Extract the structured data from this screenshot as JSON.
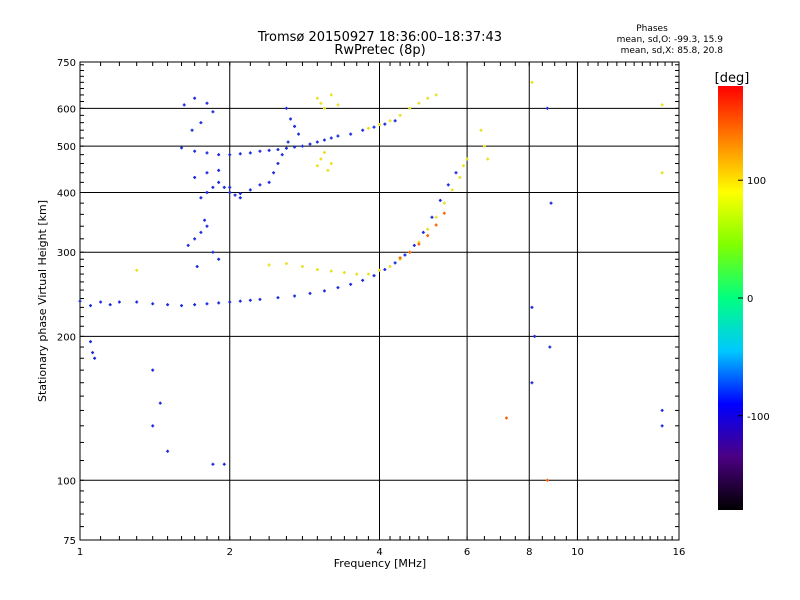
{
  "chart_data": {
    "type": "scatter",
    "title": "Tromsø 20150927 18:36:00–18:37:43",
    "subtitle": "RwPretec (8p)",
    "xlabel": "Frequency [MHz]",
    "ylabel": "Stationary phase Virtual Height [km]",
    "xscale": "log",
    "yscale": "log",
    "xlim": [
      1,
      16
    ],
    "ylim": [
      75,
      750
    ],
    "x_ticks": [
      1,
      2,
      4,
      6,
      8,
      10,
      16
    ],
    "y_ticks": [
      75,
      100,
      200,
      300,
      400,
      500,
      600,
      750
    ],
    "x_grid": [
      2,
      4,
      6,
      8,
      10
    ],
    "y_grid": [
      100,
      200,
      300,
      400,
      500,
      600
    ],
    "grid": true,
    "stats_header": "Phases",
    "stats_line1": "mean, sd,O: -99.3, 15.9",
    "stats_line2": "mean, sd,X:  85.8, 20.8",
    "colorbar": {
      "label": "[deg]",
      "range": [
        -180,
        180
      ],
      "ticks": [
        -100,
        0,
        100
      ],
      "colors": [
        "#000000",
        "#4b0082",
        "#0000ff",
        "#00c8ff",
        "#00ff80",
        "#80ff00",
        "#ffff00",
        "#ff8000",
        "#ff0000"
      ]
    },
    "series": [
      {
        "name": "O",
        "color": "#1c2cdc",
        "points": [
          [
            1.0,
            237
          ],
          [
            1.05,
            232
          ],
          [
            1.1,
            236
          ],
          [
            1.15,
            233
          ],
          [
            1.2,
            236
          ],
          [
            1.3,
            236
          ],
          [
            1.4,
            234
          ],
          [
            1.5,
            233
          ],
          [
            1.6,
            232
          ],
          [
            1.7,
            233
          ],
          [
            1.8,
            234
          ],
          [
            1.9,
            235
          ],
          [
            2.0,
            236
          ],
          [
            2.1,
            237
          ],
          [
            2.2,
            238
          ],
          [
            2.3,
            239
          ],
          [
            2.5,
            241
          ],
          [
            2.7,
            243
          ],
          [
            2.9,
            246
          ],
          [
            3.1,
            249
          ],
          [
            3.3,
            253
          ],
          [
            3.5,
            257
          ],
          [
            3.7,
            262
          ],
          [
            3.9,
            268
          ],
          [
            4.1,
            276
          ],
          [
            4.3,
            285
          ],
          [
            4.5,
            296
          ],
          [
            4.7,
            310
          ],
          [
            4.9,
            330
          ],
          [
            5.1,
            355
          ],
          [
            5.3,
            385
          ],
          [
            5.5,
            415
          ],
          [
            5.7,
            440
          ],
          [
            1.6,
            496
          ],
          [
            1.7,
            488
          ],
          [
            1.8,
            484
          ],
          [
            1.9,
            480
          ],
          [
            2.0,
            480
          ],
          [
            2.1,
            482
          ],
          [
            2.2,
            484
          ],
          [
            2.3,
            488
          ],
          [
            2.4,
            490
          ],
          [
            2.5,
            492
          ],
          [
            2.6,
            495
          ],
          [
            2.7,
            498
          ],
          [
            2.8,
            500
          ],
          [
            2.9,
            505
          ],
          [
            3.0,
            510
          ],
          [
            3.1,
            515
          ],
          [
            3.2,
            520
          ],
          [
            3.3,
            525
          ],
          [
            3.5,
            530
          ],
          [
            3.7,
            540
          ],
          [
            3.9,
            548
          ],
          [
            4.1,
            556
          ],
          [
            4.3,
            565
          ],
          [
            1.75,
            390
          ],
          [
            1.8,
            400
          ],
          [
            1.85,
            410
          ],
          [
            1.9,
            420
          ],
          [
            1.95,
            410
          ],
          [
            2.0,
            400
          ],
          [
            2.05,
            395
          ],
          [
            2.1,
            398
          ],
          [
            2.2,
            405
          ],
          [
            2.3,
            415
          ],
          [
            1.7,
            430
          ],
          [
            1.8,
            440
          ],
          [
            1.9,
            445
          ],
          [
            2.0,
            410
          ],
          [
            2.1,
            390
          ],
          [
            1.65,
            310
          ],
          [
            1.7,
            320
          ],
          [
            1.75,
            330
          ],
          [
            1.8,
            340
          ],
          [
            1.85,
            300
          ],
          [
            1.9,
            290
          ],
          [
            1.72,
            280
          ],
          [
            1.78,
            350
          ],
          [
            1.62,
            610
          ],
          [
            1.7,
            630
          ],
          [
            1.8,
            615
          ],
          [
            1.85,
            590
          ],
          [
            1.75,
            560
          ],
          [
            1.68,
            540
          ],
          [
            2.6,
            600
          ],
          [
            2.65,
            570
          ],
          [
            2.7,
            550
          ],
          [
            2.75,
            530
          ],
          [
            2.62,
            510
          ],
          [
            2.55,
            480
          ],
          [
            2.5,
            460
          ],
          [
            2.45,
            440
          ],
          [
            2.4,
            420
          ],
          [
            1.05,
            195
          ],
          [
            1.06,
            185
          ],
          [
            1.07,
            180
          ],
          [
            1.4,
            170
          ],
          [
            1.5,
            115
          ],
          [
            1.85,
            108
          ],
          [
            1.95,
            108
          ],
          [
            1.4,
            130
          ],
          [
            1.45,
            145
          ],
          [
            8.1,
            230
          ],
          [
            8.2,
            200
          ],
          [
            8.7,
            600
          ],
          [
            8.8,
            190
          ],
          [
            8.85,
            380
          ],
          [
            8.1,
            160
          ],
          [
            14.8,
            140
          ],
          [
            14.8,
            130
          ]
        ]
      },
      {
        "name": "X",
        "color": "#e8e020",
        "points": [
          [
            2.4,
            282
          ],
          [
            2.6,
            284
          ],
          [
            2.8,
            280
          ],
          [
            3.0,
            276
          ],
          [
            3.2,
            274
          ],
          [
            3.4,
            272
          ],
          [
            3.6,
            270
          ],
          [
            3.8,
            270
          ],
          [
            4.0,
            275
          ],
          [
            4.2,
            280
          ],
          [
            4.4,
            290
          ],
          [
            4.6,
            300
          ],
          [
            4.8,
            315
          ],
          [
            5.0,
            335
          ],
          [
            5.2,
            355
          ],
          [
            5.4,
            380
          ],
          [
            5.6,
            405
          ],
          [
            5.8,
            430
          ],
          [
            5.9,
            455
          ],
          [
            6.0,
            470
          ],
          [
            3.8,
            545
          ],
          [
            4.0,
            555
          ],
          [
            4.2,
            565
          ],
          [
            4.4,
            580
          ],
          [
            4.6,
            600
          ],
          [
            4.8,
            615
          ],
          [
            5.0,
            630
          ],
          [
            5.2,
            640
          ],
          [
            3.0,
            630
          ],
          [
            3.05,
            615
          ],
          [
            3.1,
            600
          ],
          [
            3.2,
            640
          ],
          [
            3.3,
            610
          ],
          [
            3.0,
            455
          ],
          [
            3.05,
            470
          ],
          [
            3.1,
            485
          ],
          [
            3.15,
            445
          ],
          [
            3.2,
            460
          ],
          [
            6.4,
            540
          ],
          [
            6.5,
            500
          ],
          [
            6.6,
            470
          ],
          [
            1.3,
            275
          ],
          [
            8.1,
            680
          ],
          [
            14.8,
            610
          ],
          [
            14.8,
            440
          ]
        ]
      },
      {
        "name": "",
        "color": "#ff6000",
        "points": [
          [
            4.4,
            292
          ],
          [
            4.6,
            300
          ],
          [
            4.8,
            312
          ],
          [
            5.0,
            325
          ],
          [
            5.2,
            342
          ],
          [
            5.4,
            362
          ],
          [
            7.2,
            135
          ],
          [
            8.7,
            100
          ]
        ]
      }
    ]
  }
}
